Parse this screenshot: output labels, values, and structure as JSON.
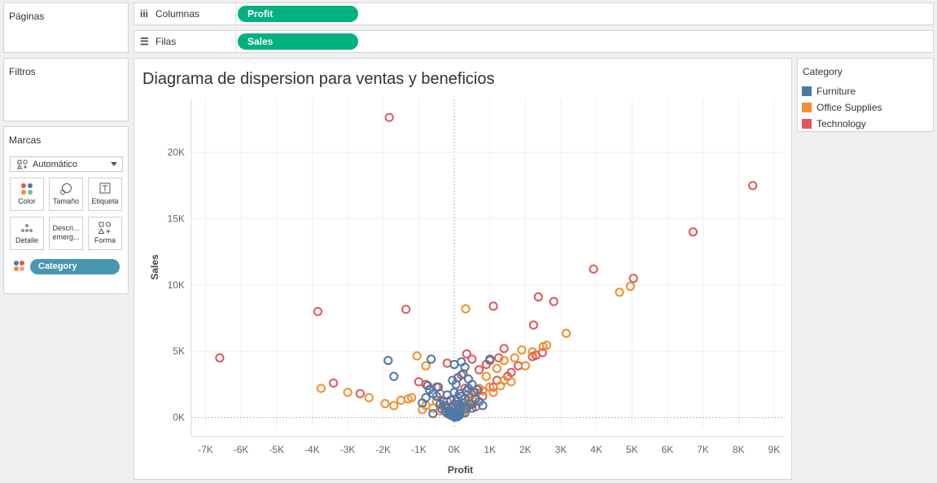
{
  "sidebar": {
    "paginas_label": "Páginas",
    "filtros_label": "Filtros",
    "marcas_label": "Marcas",
    "mark_type": "Automático",
    "cards": [
      {
        "label": "Color",
        "icon": "color-dots-icon"
      },
      {
        "label": "Tamaño",
        "icon": "size-icon"
      },
      {
        "label": "Etiqueta",
        "icon": "label-icon"
      },
      {
        "label": "Detalle",
        "icon": "detail-icon"
      },
      {
        "label": "Descri... emerg...",
        "icon": "tooltip-icon"
      },
      {
        "label": "Forma",
        "icon": "shape-icon"
      }
    ],
    "color_pill": "Category"
  },
  "shelves": {
    "columns_label": "Columnas",
    "columns_pill": "Profit",
    "rows_label": "Filas",
    "rows_pill": "Sales"
  },
  "legend": {
    "title": "Category",
    "items": [
      {
        "label": "Furniture",
        "color": "#4e79a7"
      },
      {
        "label": "Office Supplies",
        "color": "#f28e2b"
      },
      {
        "label": "Technology",
        "color": "#e15759"
      }
    ]
  },
  "chart_data": {
    "type": "scatter",
    "title": "Diagrama de dispersion para ventas y beneficios",
    "xlabel": "Profit",
    "ylabel": "Sales",
    "xlim": [
      -7400,
      9300
    ],
    "ylim": [
      -700,
      24000
    ],
    "x_ticks": [
      -7000,
      -6000,
      -5000,
      -4000,
      -3000,
      -2000,
      -1000,
      0,
      1000,
      2000,
      3000,
      4000,
      5000,
      6000,
      7000,
      8000,
      9000
    ],
    "x_tick_labels": [
      "-7K",
      "-6K",
      "-5K",
      "-4K",
      "-3K",
      "-2K",
      "-1K",
      "0K",
      "1K",
      "2K",
      "3K",
      "4K",
      "5K",
      "6K",
      "7K",
      "8K",
      "9K"
    ],
    "y_ticks": [
      0,
      5000,
      10000,
      15000,
      20000
    ],
    "y_tick_labels": [
      "0K",
      "5K",
      "10K",
      "15K",
      "20K"
    ],
    "marker": "open-circle",
    "series": [
      {
        "name": "Technology",
        "color": "#e15759",
        "points": [
          [
            -1829,
            22638
          ],
          [
            8399,
            17500
          ],
          [
            6720,
            14000
          ],
          [
            3919,
            11200
          ],
          [
            5040,
            10500
          ],
          [
            2365,
            9100
          ],
          [
            2800,
            8750
          ],
          [
            1100,
            8400
          ],
          [
            -1360,
            8160
          ],
          [
            -3840,
            7999
          ],
          [
            2230,
            6980
          ],
          [
            -6600,
            4500
          ],
          [
            -3400,
            2600
          ],
          [
            -2650,
            1800
          ],
          [
            1400,
            5200
          ],
          [
            2480,
            4900
          ],
          [
            2300,
            4700
          ],
          [
            1250,
            4500
          ],
          [
            900,
            4000
          ],
          [
            1000,
            4300
          ],
          [
            1600,
            3400
          ],
          [
            1500,
            3100
          ],
          [
            350,
            4800
          ],
          [
            500,
            4400
          ],
          [
            -200,
            4100
          ],
          [
            200,
            3200
          ],
          [
            -800,
            2500
          ],
          [
            -1000,
            2700
          ],
          [
            -500,
            2300
          ],
          [
            700,
            3600
          ],
          [
            1200,
            2800
          ],
          [
            -400,
            1800
          ],
          [
            300,
            2200
          ],
          [
            600,
            1900
          ],
          [
            100,
            1500
          ],
          [
            -200,
            1200
          ],
          [
            400,
            1300
          ],
          [
            800,
            1600
          ],
          [
            150,
            900
          ],
          [
            -100,
            700
          ],
          [
            500,
            1000
          ],
          [
            250,
            600
          ],
          [
            -300,
            900
          ],
          [
            1100,
            2300
          ],
          [
            1800,
            3900
          ],
          [
            2200,
            4600
          ],
          [
            50,
            400
          ],
          [
            600,
            800
          ]
        ]
      },
      {
        "name": "Office Supplies",
        "color": "#f28e2b",
        "points": [
          [
            4956,
            9900
          ],
          [
            4650,
            9450
          ],
          [
            320,
            8200
          ],
          [
            3150,
            6350
          ],
          [
            2600,
            5450
          ],
          [
            2500,
            5350
          ],
          [
            2200,
            4950
          ],
          [
            1900,
            5100
          ],
          [
            1400,
            4300
          ],
          [
            2000,
            3900
          ],
          [
            1700,
            4500
          ],
          [
            1200,
            3700
          ],
          [
            900,
            3100
          ],
          [
            -1050,
            4650
          ],
          [
            -800,
            3900
          ],
          [
            -3750,
            2200
          ],
          [
            -3000,
            1900
          ],
          [
            -2400,
            1500
          ],
          [
            -1950,
            1050
          ],
          [
            -1700,
            900
          ],
          [
            -1200,
            1500
          ],
          [
            -1300,
            1400
          ],
          [
            -1500,
            1300
          ],
          [
            -800,
            900
          ],
          [
            -600,
            700
          ],
          [
            -900,
            600
          ],
          [
            -400,
            500
          ],
          [
            -300,
            800
          ],
          [
            -200,
            300
          ],
          [
            -100,
            200
          ],
          [
            1000,
            2300
          ],
          [
            1600,
            2700
          ],
          [
            1300,
            2400
          ],
          [
            800,
            2000
          ],
          [
            600,
            1500
          ],
          [
            400,
            1100
          ],
          [
            200,
            800
          ],
          [
            500,
            1700
          ],
          [
            700,
            2200
          ],
          [
            300,
            600
          ],
          [
            1100,
            1900
          ],
          [
            1400,
            2800
          ],
          [
            -500,
            1200
          ],
          [
            250,
            400
          ],
          [
            150,
            300
          ],
          [
            50,
            150
          ]
        ]
      },
      {
        "name": "Furniture",
        "color": "#4e79a7",
        "points": [
          [
            -1860,
            4300
          ],
          [
            -1700,
            3100
          ],
          [
            -650,
            4400
          ],
          [
            -750,
            2400
          ],
          [
            -450,
            2300
          ],
          [
            -600,
            1800
          ],
          [
            -800,
            1500
          ],
          [
            -300,
            1200
          ],
          [
            -400,
            1000
          ],
          [
            -250,
            900
          ],
          [
            -900,
            1100
          ],
          [
            -700,
            2100
          ],
          [
            -500,
            1600
          ],
          [
            -200,
            700
          ],
          [
            -150,
            500
          ],
          [
            -100,
            400
          ],
          [
            -50,
            350
          ],
          [
            0,
            300
          ],
          [
            80,
            250
          ],
          [
            120,
            600
          ],
          [
            180,
            800
          ],
          [
            250,
            1100
          ],
          [
            300,
            1400
          ],
          [
            100,
            1000
          ],
          [
            200,
            1600
          ],
          [
            350,
            2000
          ],
          [
            400,
            2200
          ],
          [
            150,
            1800
          ],
          [
            50,
            2500
          ],
          [
            -50,
            2800
          ],
          [
            100,
            3000
          ],
          [
            0,
            4000
          ],
          [
            200,
            4200
          ],
          [
            300,
            3800
          ],
          [
            250,
            3300
          ],
          [
            400,
            2900
          ],
          [
            500,
            2500
          ],
          [
            550,
            1900
          ],
          [
            600,
            1400
          ],
          [
            450,
            1000
          ],
          [
            350,
            700
          ],
          [
            650,
            2100
          ],
          [
            1000,
            4400
          ],
          [
            -100,
            1300
          ],
          [
            -200,
            1700
          ],
          [
            0,
            1900
          ],
          [
            60,
            1200
          ],
          [
            -30,
            900
          ],
          [
            20,
            600
          ],
          [
            -80,
            150
          ],
          [
            40,
            100
          ],
          [
            150,
            180
          ],
          [
            -150,
            250
          ],
          [
            -250,
            450
          ],
          [
            300,
            350
          ],
          [
            -350,
            650
          ],
          [
            500,
            700
          ],
          [
            700,
            1200
          ],
          [
            800,
            900
          ],
          [
            -600,
            300
          ],
          [
            10,
            20
          ],
          [
            90,
            60
          ],
          [
            -20,
            80
          ],
          [
            170,
            420
          ]
        ]
      }
    ]
  }
}
